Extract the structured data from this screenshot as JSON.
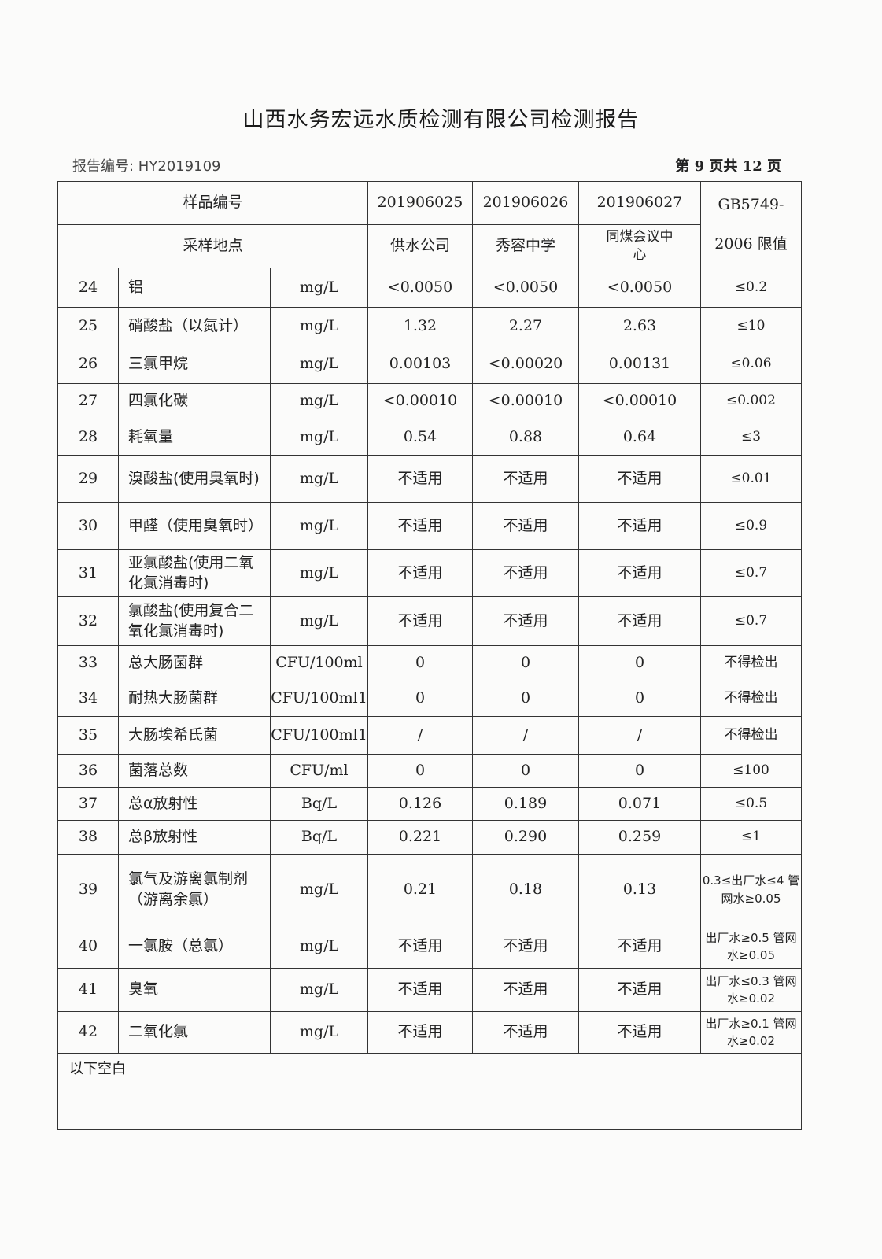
{
  "title": "山西水务宏远水质检测有限公司检测报告",
  "report_no": "报告编号: HY2019109",
  "page_no": "第 9 页共 12 页",
  "header": {
    "sample_no_label": "样品编号",
    "site_label": "采样地点",
    "samples": [
      {
        "id": "201906025",
        "site": "供水公司"
      },
      {
        "id": "201906026",
        "site": "秀容中学"
      },
      {
        "id": "201906027",
        "site": "同煤会议中心"
      }
    ],
    "limit_label": "GB5749-2006 限值"
  },
  "rows": [
    {
      "no": "24",
      "name": "铝",
      "unit": "mg/L",
      "v": [
        "<0.0050",
        "<0.0050",
        "<0.0050"
      ],
      "limit": "≤0.2"
    },
    {
      "no": "25",
      "name": "硝酸盐（以氮计）",
      "unit": "mg/L",
      "v": [
        "1.32",
        "2.27",
        "2.63"
      ],
      "limit": "≤10"
    },
    {
      "no": "26",
      "name": "三氯甲烷",
      "unit": "mg/L",
      "v": [
        "0.00103",
        "<0.00020",
        "0.00131"
      ],
      "limit": "≤0.06"
    },
    {
      "no": "27",
      "name": "四氯化碳",
      "unit": "mg/L",
      "v": [
        "<0.00010",
        "<0.00010",
        "<0.00010"
      ],
      "limit": "≤0.002"
    },
    {
      "no": "28",
      "name": "耗氧量",
      "unit": "mg/L",
      "v": [
        "0.54",
        "0.88",
        "0.64"
      ],
      "limit": "≤3"
    },
    {
      "no": "29",
      "name": "溴酸盐(使用臭氧时)",
      "unit": "mg/L",
      "v": [
        "不适用",
        "不适用",
        "不适用"
      ],
      "limit": "≤0.01"
    },
    {
      "no": "30",
      "name": "甲醛（使用臭氧时）",
      "unit": "mg/L",
      "v": [
        "不适用",
        "不适用",
        "不适用"
      ],
      "limit": "≤0.9"
    },
    {
      "no": "31",
      "name": "亚氯酸盐(使用二氧化氯消毒时)",
      "unit": "mg/L",
      "v": [
        "不适用",
        "不适用",
        "不适用"
      ],
      "limit": "≤0.7"
    },
    {
      "no": "32",
      "name": "氯酸盐(使用复合二氧化氯消毒时)",
      "unit": "mg/L",
      "v": [
        "不适用",
        "不适用",
        "不适用"
      ],
      "limit": "≤0.7"
    },
    {
      "no": "33",
      "name": "总大肠菌群",
      "unit": "CFU/100ml",
      "v": [
        "0",
        "0",
        "0"
      ],
      "limit": "不得检出"
    },
    {
      "no": "34",
      "name": "耐热大肠菌群",
      "unit": "CFU/100ml1",
      "v": [
        "0",
        "0",
        "0"
      ],
      "limit": "不得检出"
    },
    {
      "no": "35",
      "name": "大肠埃希氏菌",
      "unit": "CFU/100ml1",
      "v": [
        "/",
        "/",
        "/"
      ],
      "limit": "不得检出"
    },
    {
      "no": "36",
      "name": "菌落总数",
      "unit": "CFU/ml",
      "v": [
        "0",
        "0",
        "0"
      ],
      "limit": "≤100"
    },
    {
      "no": "37",
      "name": "总α放射性",
      "unit": "Bq/L",
      "v": [
        "0.126",
        "0.189",
        "0.071"
      ],
      "limit": "≤0.5"
    },
    {
      "no": "38",
      "name": "总β放射性",
      "unit": "Bq/L",
      "v": [
        "0.221",
        "0.290",
        "0.259"
      ],
      "limit": "≤1"
    },
    {
      "no": "39",
      "name": "氯气及游离氯制剂（游离余氯）",
      "unit": "mg/L",
      "v": [
        "0.21",
        "0.18",
        "0.13"
      ],
      "limit": "0.3≤出厂水≤4 管网水≥0.05"
    },
    {
      "no": "40",
      "name": "一氯胺（总氯）",
      "unit": "mg/L",
      "v": [
        "不适用",
        "不适用",
        "不适用"
      ],
      "limit": "出厂水≥0.5 管网水≥0.05"
    },
    {
      "no": "41",
      "name": "臭氧",
      "unit": "mg/L",
      "v": [
        "不适用",
        "不适用",
        "不适用"
      ],
      "limit": "出厂水≤0.3 管网水≥0.02"
    },
    {
      "no": "42",
      "name": "二氧化氯",
      "unit": "mg/L",
      "v": [
        "不适用",
        "不适用",
        "不适用"
      ],
      "limit": "出厂水≥0.1 管网水≥0.02"
    }
  ],
  "footer_note": "以下空白"
}
